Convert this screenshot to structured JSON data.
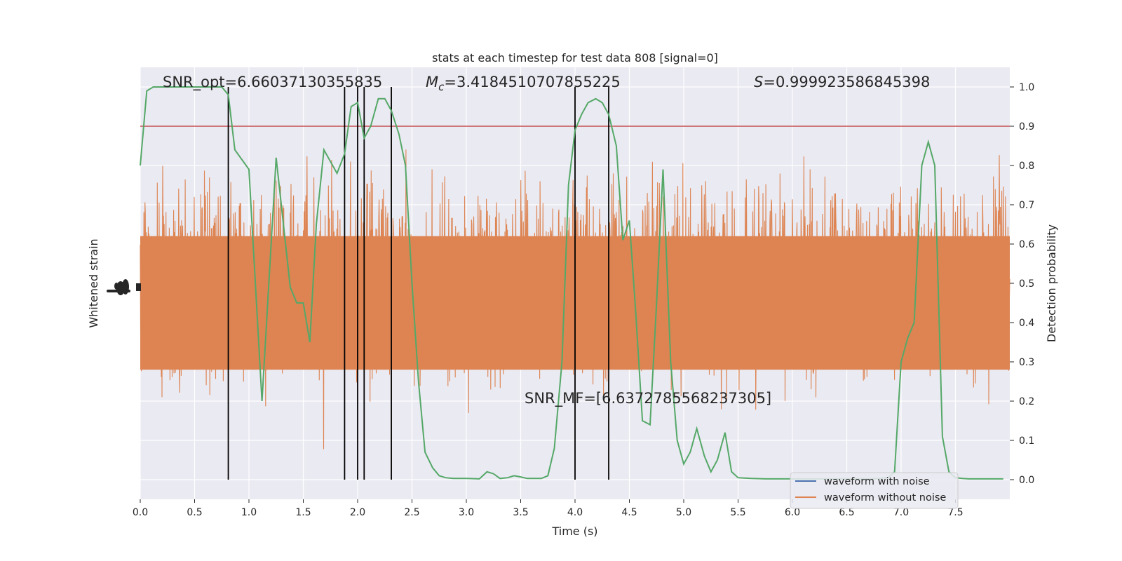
{
  "chart_data": {
    "type": "line",
    "title": "stats at each timestep for test data 808 [signal=0]",
    "xlabel": "Time (s)",
    "ylabel_left": "Whitened strain",
    "ylabel_right": "Detection probability",
    "xlim": [
      0,
      8
    ],
    "ylim_right": [
      -0.05,
      1.05
    ],
    "x_ticks": [
      "0.0",
      "0.5",
      "1.0",
      "1.5",
      "2.0",
      "2.5",
      "3.0",
      "3.5",
      "4.0",
      "4.5",
      "5.0",
      "5.5",
      "6.0",
      "6.5",
      "7.0",
      "7.5"
    ],
    "x_tick_values": [
      0,
      0.5,
      1,
      1.5,
      2,
      2.5,
      3,
      3.5,
      4,
      4.5,
      5,
      5.5,
      6,
      6.5,
      7,
      7.5
    ],
    "y_ticks_right": [
      "0.0",
      "0.1",
      "0.2",
      "0.3",
      "0.4",
      "0.5",
      "0.6",
      "0.7",
      "0.8",
      "0.9",
      "1.0"
    ],
    "y_tick_values_right": [
      0,
      0.1,
      0.2,
      0.3,
      0.4,
      0.5,
      0.6,
      0.7,
      0.8,
      0.9,
      1.0
    ],
    "threshold": 0.9,
    "vertical_lines": [
      0.81,
      1.88,
      2.0,
      2.06,
      2.31,
      4.0,
      4.31
    ],
    "annotations": {
      "snr_opt": "SNR_opt=6.66037130355835",
      "mc_symbol": "M",
      "mc_sub": "c",
      "mc_value": "=3.4184510707855225",
      "s_symbol": "S",
      "s_value": "=0.999923586845398",
      "snr_mf": "SNR_MF=[6.6372785568237305]"
    },
    "legend": {
      "placement": "lower-right",
      "entries": [
        {
          "label": "waveform with noise",
          "color": "#4c72b0"
        },
        {
          "label": "waveform without noise",
          "color": "#dd8452"
        }
      ]
    },
    "series": [
      {
        "color": "#55a868",
        "x": [
          0.0,
          0.06,
          0.12,
          0.25,
          0.5,
          0.75,
          0.81,
          0.87,
          1.0,
          1.12,
          1.25,
          1.38,
          1.44,
          1.5,
          1.56,
          1.62,
          1.69,
          1.81,
          1.88,
          1.94,
          2.0,
          2.06,
          2.12,
          2.19,
          2.25,
          2.31,
          2.38,
          2.44,
          2.5,
          2.56,
          2.62,
          2.69,
          2.75,
          2.81,
          2.88,
          3.0,
          3.12,
          3.19,
          3.25,
          3.31,
          3.38,
          3.44,
          3.5,
          3.56,
          3.62,
          3.69,
          3.75,
          3.81,
          3.88,
          3.94,
          4.0,
          4.06,
          4.12,
          4.19,
          4.25,
          4.31,
          4.38,
          4.44,
          4.5,
          4.56,
          4.62,
          4.69,
          4.75,
          4.81,
          4.88,
          4.94,
          5.0,
          5.06,
          5.12,
          5.19,
          5.25,
          5.31,
          5.38,
          5.44,
          5.5,
          5.56,
          5.62,
          5.75,
          6.0,
          6.5,
          6.75,
          6.88,
          6.94,
          7.0,
          7.06,
          7.12,
          7.19,
          7.25,
          7.31,
          7.38,
          7.44,
          7.5,
          7.56,
          7.62,
          7.75,
          7.94
        ],
        "y": [
          0.8,
          0.99,
          1.0,
          1.0,
          1.0,
          1.0,
          0.98,
          0.84,
          0.79,
          0.2,
          0.82,
          0.49,
          0.45,
          0.45,
          0.35,
          0.65,
          0.84,
          0.78,
          0.83,
          0.95,
          0.96,
          0.87,
          0.9,
          0.97,
          0.97,
          0.94,
          0.88,
          0.8,
          0.5,
          0.25,
          0.07,
          0.03,
          0.01,
          0.005,
          0.003,
          0.003,
          0.002,
          0.02,
          0.015,
          0.003,
          0.005,
          0.01,
          0.007,
          0.003,
          0.003,
          0.003,
          0.01,
          0.08,
          0.3,
          0.75,
          0.89,
          0.93,
          0.96,
          0.97,
          0.96,
          0.93,
          0.85,
          0.61,
          0.66,
          0.42,
          0.15,
          0.14,
          0.45,
          0.79,
          0.3,
          0.1,
          0.04,
          0.07,
          0.13,
          0.06,
          0.02,
          0.05,
          0.12,
          0.02,
          0.005,
          0.004,
          0.003,
          0.002,
          0.002,
          0.002,
          0.002,
          0.005,
          0.02,
          0.3,
          0.36,
          0.4,
          0.8,
          0.86,
          0.8,
          0.11,
          0.02,
          0.005,
          0.003,
          0.002,
          0.002,
          0.002
        ]
      }
    ]
  }
}
